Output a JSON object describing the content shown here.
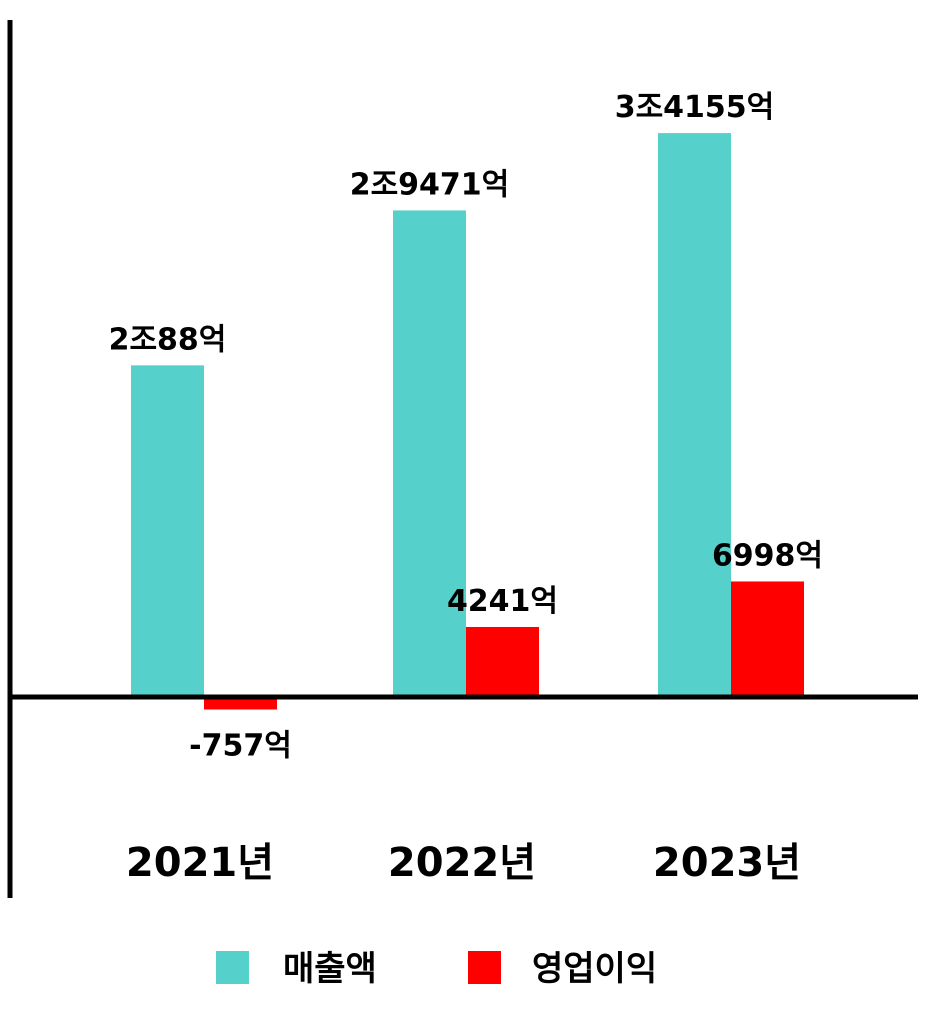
{
  "chart_data": {
    "type": "bar",
    "title": "",
    "xlabel": "",
    "ylabel": "",
    "categories": [
      "2021년",
      "2022년",
      "2023년"
    ],
    "series": [
      {
        "name": "매출액",
        "color": "#55D0CB",
        "values": [
          20088,
          29471,
          34155
        ],
        "labels": [
          "2조88억",
          "2조9471억",
          "3조4155억"
        ]
      },
      {
        "name": "영업이익",
        "color": "#FF0000",
        "values": [
          -757,
          4241,
          6998
        ],
        "labels": [
          "-757억",
          "4241억",
          "6998억"
        ]
      }
    ],
    "ylim": [
      -3100,
      39000
    ],
    "grid": false,
    "legend": "bottom",
    "axis_color": "#000000"
  }
}
